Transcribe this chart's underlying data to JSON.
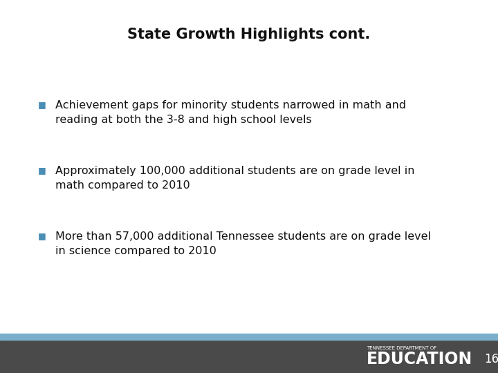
{
  "title": "State Growth Highlights cont.",
  "title_fontsize": 15,
  "title_color": "#111111",
  "bullet_color": "#4a8db5",
  "text_color": "#111111",
  "text_fontsize": 11.5,
  "bullets": [
    "Achievement gaps for minority students narrowed in math and\nreading at both the 3-8 and high school levels",
    "Approximately 100,000 additional students are on grade level in\nmath compared to 2010",
    "More than 57,000 additional Tennessee students are on grade level\nin science compared to 2010"
  ],
  "bg_color": "#ffffff",
  "footer_bar_color": "#7aafcc",
  "footer_bg_color": "#4a4a4a",
  "footer_small_text": "TENNESSEE DEPARTMENT OF",
  "footer_big_text": "EDUCATION",
  "page_number": "16",
  "footer_text_color": "#ffffff"
}
